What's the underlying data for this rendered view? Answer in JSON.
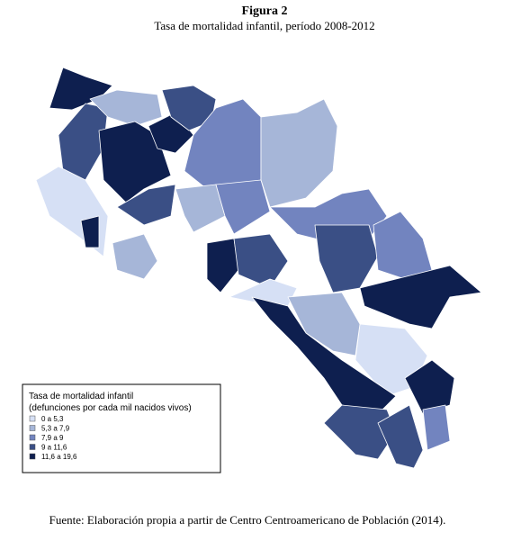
{
  "figure": {
    "label": "Figura 2",
    "title": "Tasa de mortalidad infantil, período 2008-2012"
  },
  "legend": {
    "title": [
      "Tasa de mortalidad infantil",
      "(defunciones por cada mil nacidos vivos)"
    ],
    "items": [
      {
        "label": "0 a 5,3",
        "color": "#d6e0f5"
      },
      {
        "label": "5,3 a 7,9",
        "color": "#a6b6d8"
      },
      {
        "label": "7,9 a 9",
        "color": "#7284bf"
      },
      {
        "label": "9 a 11,6",
        "color": "#3a4f85"
      },
      {
        "label": "11,6 a 19,6",
        "color": "#0e1f4f"
      }
    ]
  },
  "source": "Fuente: Elaboración propia a partir de Centro Centroamericano de Población (2014)."
}
